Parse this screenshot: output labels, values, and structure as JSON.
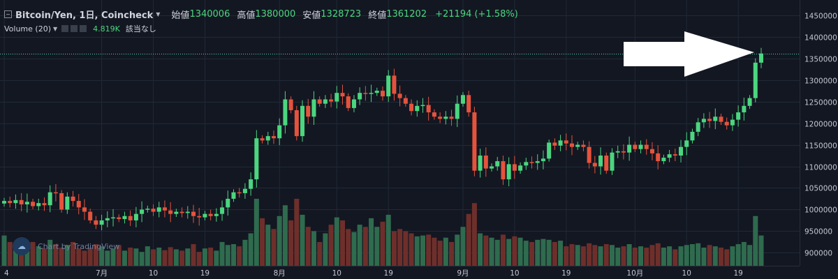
{
  "legend": {
    "symbol": "Bitcoin/Yen, 1日, Coincheck",
    "open_label": "始値",
    "open": "1340006",
    "high_label": "高値",
    "high": "1380000",
    "low_label": "安値",
    "low": "1328723",
    "close_label": "終値",
    "close": "1361202",
    "change": "+21194 (+1.58%)"
  },
  "volume_legend": {
    "label": "Volume (20)",
    "value": "4.819K",
    "na": "該当なし"
  },
  "watermark": "Chart by TradingView",
  "colors": {
    "background": "#131722",
    "up": "#4bd67f",
    "down": "#e5533d",
    "vol_up": "#2f6b4e",
    "vol_down": "#6e2f2b",
    "grid": "#1f2a37",
    "text": "#c4c8d2"
  },
  "chart_data": {
    "type": "candlestick",
    "ylim": [
      870000,
      1485000
    ],
    "y_ticks": [
      900000,
      950000,
      1000000,
      1050000,
      1100000,
      1150000,
      1200000,
      1250000,
      1300000,
      1350000,
      1400000,
      1450000
    ],
    "price_label": "1361202",
    "x_labels": [
      {
        "label": "4",
        "bar": 0
      },
      {
        "label": "7月",
        "bar": 17
      },
      {
        "label": "10",
        "bar": 26
      },
      {
        "label": "19",
        "bar": 35
      },
      {
        "label": "8月",
        "bar": 48
      },
      {
        "label": "10",
        "bar": 58
      },
      {
        "label": "19",
        "bar": 67
      },
      {
        "label": "9月",
        "bar": 80
      },
      {
        "label": "10",
        "bar": 89
      },
      {
        "label": "19",
        "bar": 98
      },
      {
        "label": "10月",
        "bar": 110
      },
      {
        "label": "10",
        "bar": 119
      },
      {
        "label": "19",
        "bar": 128
      }
    ],
    "closes": [
      1020000,
      1015000,
      1022000,
      1012000,
      1018000,
      1008000,
      1015000,
      1010000,
      1040000,
      1038000,
      1000000,
      1030000,
      1020000,
      1005000,
      995000,
      975000,
      965000,
      975000,
      980000,
      982000,
      978000,
      985000,
      975000,
      990000,
      1000000,
      1002000,
      995000,
      1005000,
      998000,
      990000,
      995000,
      992000,
      995000,
      985000,
      982000,
      990000,
      985000,
      990000,
      1005000,
      1025000,
      1040000,
      1038000,
      1048000,
      1070000,
      1165000,
      1160000,
      1170000,
      1165000,
      1195000,
      1255000,
      1230000,
      1170000,
      1240000,
      1215000,
      1255000,
      1245000,
      1255000,
      1250000,
      1270000,
      1262000,
      1235000,
      1255000,
      1270000,
      1268000,
      1270000,
      1275000,
      1262000,
      1310000,
      1268000,
      1258000,
      1245000,
      1228000,
      1240000,
      1242000,
      1225000,
      1215000,
      1210000,
      1215000,
      1210000,
      1245000,
      1265000,
      1225000,
      1090000,
      1125000,
      1095000,
      1100000,
      1112000,
      1070000,
      1105000,
      1090000,
      1102000,
      1110000,
      1108000,
      1112000,
      1118000,
      1155000,
      1148000,
      1160000,
      1153000,
      1145000,
      1150000,
      1145000,
      1108000,
      1100000,
      1125000,
      1090000,
      1132000,
      1135000,
      1132000,
      1150000,
      1140000,
      1150000,
      1140000,
      1130000,
      1112000,
      1120000,
      1128000,
      1125000,
      1145000,
      1160000,
      1180000,
      1202000,
      1210000,
      1205000,
      1215000,
      1203000,
      1195000,
      1208000,
      1225000,
      1240000,
      1258000,
      1340000,
      1361202
    ],
    "volumes": [
      940000,
      925000,
      915000,
      920000,
      905000,
      925000,
      915000,
      910000,
      930000,
      920000,
      912000,
      918000,
      925000,
      910000,
      905000,
      912000,
      920000,
      915000,
      905000,
      910000,
      918000,
      905000,
      912000,
      910000,
      902000,
      915000,
      908000,
      912000,
      906000,
      913000,
      908000,
      905000,
      910000,
      920000,
      902000,
      910000,
      912000,
      905000,
      925000,
      918000,
      920000,
      915000,
      930000,
      945000,
      1025000,
      980000,
      965000,
      955000,
      985000,
      1010000,
      975000,
      1025000,
      988000,
      960000,
      950000,
      925000,
      945000,
      965000,
      982000,
      975000,
      955000,
      948000,
      965000,
      960000,
      980000,
      960000,
      972000,
      988000,
      950000,
      955000,
      950000,
      945000,
      938000,
      940000,
      942000,
      935000,
      928000,
      935000,
      925000,
      942000,
      960000,
      990000,
      1015000,
      945000,
      940000,
      935000,
      930000,
      942000,
      932000,
      938000,
      935000,
      928000,
      925000,
      930000,
      932000,
      930000,
      925000,
      928000,
      915000,
      920000,
      918000,
      915000,
      922000,
      918000,
      915000,
      920000,
      918000,
      912000,
      915000,
      920000,
      912000,
      915000,
      912000,
      918000,
      922000,
      912000,
      915000,
      908000,
      915000,
      918000,
      920000,
      922000,
      912000,
      918000,
      915000,
      912000,
      908000,
      915000,
      920000,
      925000,
      918000,
      985000,
      940000
    ]
  }
}
